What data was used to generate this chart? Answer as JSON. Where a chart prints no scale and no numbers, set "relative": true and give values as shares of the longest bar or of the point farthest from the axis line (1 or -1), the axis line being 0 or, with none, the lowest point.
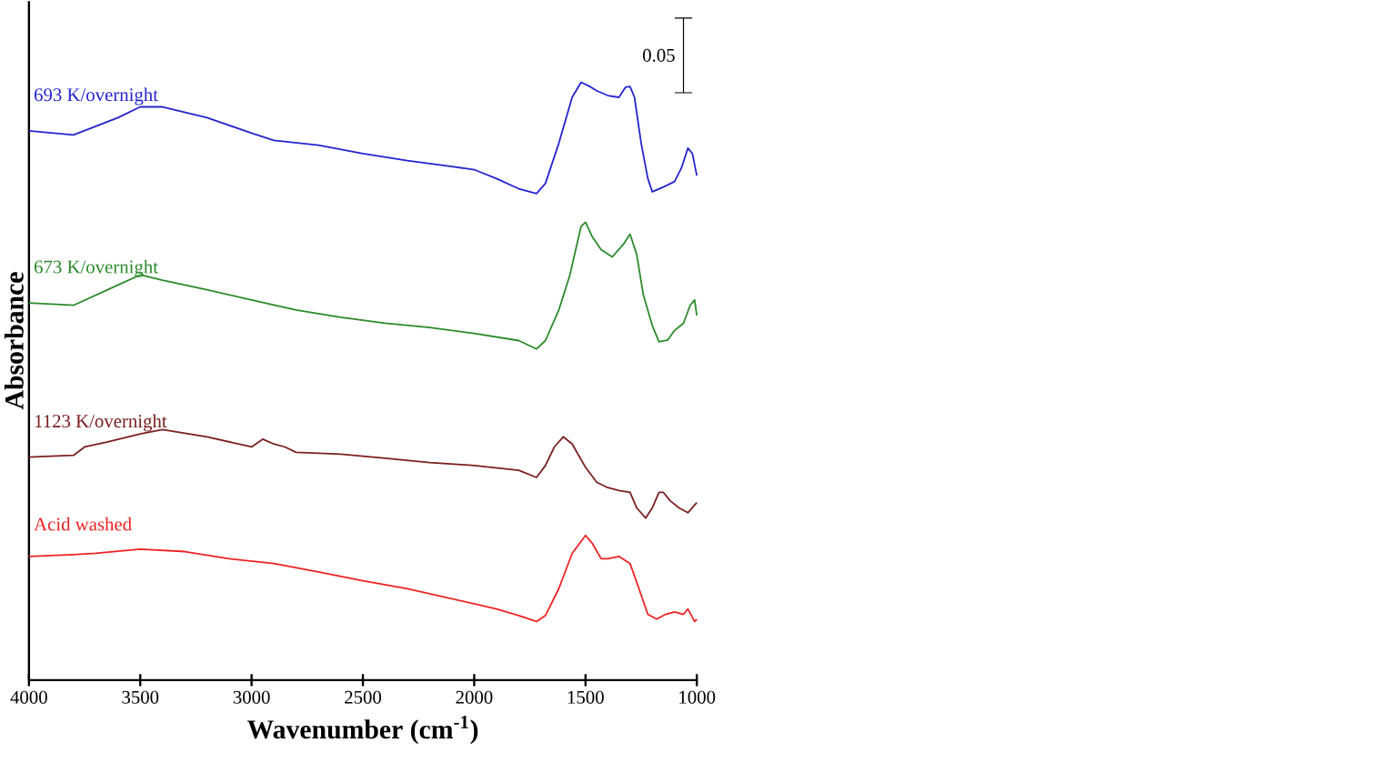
{
  "chart_data": {
    "type": "line",
    "relative": true,
    "xlabel": "Wavenumber (cm$^{-1}$)",
    "ylabel": "Absorbance",
    "xlim": [
      4000,
      1000
    ],
    "xticks": [
      4000,
      3500,
      3000,
      2500,
      2000,
      1500,
      1000
    ],
    "tick_labels": "x",
    "grid": false,
    "annotations": [
      "0.05"
    ],
    "series": [
      {
        "name": "693 K/overnight",
        "color": "#2424d0",
        "x": [
          4000,
          3800,
          3600,
          3500,
          3400,
          3200,
          3000,
          2900,
          2700,
          2500,
          2300,
          2100,
          2000,
          1900,
          1800,
          1720,
          1680,
          1620,
          1560,
          1520,
          1480,
          1450,
          1400,
          1350,
          1320,
          1300,
          1280,
          1250,
          1220,
          1200,
          1150,
          1100,
          1070,
          1040,
          1020,
          1000
        ],
        "values": [
          0.919,
          0.912,
          0.941,
          0.959,
          0.959,
          0.941,
          0.915,
          0.903,
          0.895,
          0.881,
          0.869,
          0.859,
          0.854,
          0.839,
          0.822,
          0.814,
          0.831,
          0.898,
          0.975,
          1.0,
          0.993,
          0.986,
          0.978,
          0.975,
          0.992,
          0.993,
          0.975,
          0.898,
          0.839,
          0.817,
          0.825,
          0.834,
          0.856,
          0.89,
          0.881,
          0.844
        ]
      },
      {
        "name": "673 K/overnight",
        "color": "#2a8a2a",
        "x": [
          4000,
          3800,
          3700,
          3600,
          3500,
          3400,
          3200,
          3000,
          2800,
          2600,
          2400,
          2200,
          2000,
          1800,
          1720,
          1680,
          1620,
          1570,
          1520,
          1500,
          1470,
          1430,
          1380,
          1330,
          1300,
          1270,
          1240,
          1200,
          1170,
          1130,
          1100,
          1060,
          1030,
          1010,
          1000
        ],
        "values": [
          0.631,
          0.627,
          0.644,
          0.661,
          0.678,
          0.669,
          0.653,
          0.636,
          0.619,
          0.607,
          0.597,
          0.59,
          0.58,
          0.568,
          0.554,
          0.568,
          0.619,
          0.678,
          0.759,
          0.766,
          0.742,
          0.72,
          0.708,
          0.729,
          0.746,
          0.712,
          0.644,
          0.593,
          0.566,
          0.569,
          0.585,
          0.597,
          0.627,
          0.636,
          0.61
        ]
      },
      {
        "name": "1123 K/overnight",
        "color": "#7b1f1f",
        "x": [
          4000,
          3800,
          3750,
          3650,
          3500,
          3400,
          3200,
          3000,
          2950,
          2900,
          2850,
          2800,
          2600,
          2400,
          2200,
          2000,
          1800,
          1720,
          1680,
          1640,
          1600,
          1560,
          1500,
          1450,
          1400,
          1350,
          1300,
          1270,
          1230,
          1200,
          1170,
          1150,
          1120,
          1080,
          1040,
          1000
        ],
        "values": [
          0.373,
          0.376,
          0.39,
          0.398,
          0.412,
          0.419,
          0.407,
          0.39,
          0.403,
          0.395,
          0.39,
          0.381,
          0.378,
          0.371,
          0.364,
          0.359,
          0.351,
          0.339,
          0.359,
          0.39,
          0.407,
          0.395,
          0.356,
          0.331,
          0.322,
          0.317,
          0.314,
          0.288,
          0.271,
          0.288,
          0.314,
          0.314,
          0.3,
          0.288,
          0.28,
          0.297
        ]
      },
      {
        "name": "Acid washed",
        "color": "#ee2222",
        "x": [
          4000,
          3800,
          3700,
          3500,
          3300,
          3100,
          2900,
          2700,
          2500,
          2300,
          2100,
          1900,
          1800,
          1720,
          1680,
          1620,
          1560,
          1500,
          1470,
          1430,
          1400,
          1350,
          1300,
          1260,
          1220,
          1180,
          1140,
          1100,
          1060,
          1040,
          1010,
          1000
        ],
        "values": [
          0.207,
          0.21,
          0.212,
          0.219,
          0.215,
          0.203,
          0.195,
          0.181,
          0.166,
          0.153,
          0.136,
          0.119,
          0.108,
          0.098,
          0.108,
          0.153,
          0.212,
          0.242,
          0.229,
          0.203,
          0.203,
          0.207,
          0.195,
          0.153,
          0.11,
          0.102,
          0.11,
          0.114,
          0.11,
          0.119,
          0.098,
          0.102
        ]
      }
    ]
  }
}
